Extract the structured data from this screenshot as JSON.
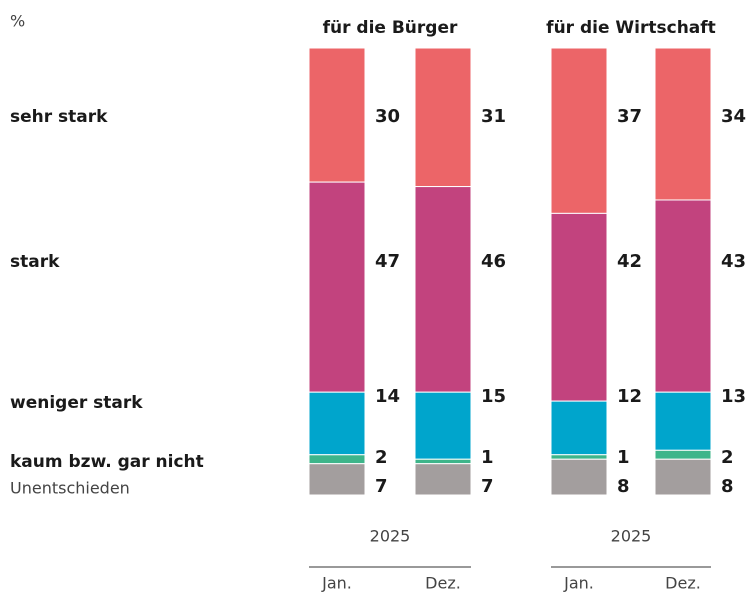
{
  "chart_data": {
    "type": "stacked-bar",
    "unit": "%",
    "ylim": [
      0,
      100
    ],
    "groups": [
      {
        "title": "für die Bürger",
        "year": "2025",
        "columns": [
          "Jan.",
          "Dez."
        ]
      },
      {
        "title": "für die Wirtschaft",
        "year": "2025",
        "columns": [
          "Jan.",
          "Dez."
        ]
      }
    ],
    "series": [
      {
        "name": "sehr stark",
        "color": "#ec6568",
        "values": [
          30,
          31,
          37,
          34
        ]
      },
      {
        "name": "stark",
        "color": "#c2437e",
        "values": [
          47,
          46,
          42,
          43
        ]
      },
      {
        "name": "weniger stark",
        "color": "#00a5cc",
        "values": [
          14,
          15,
          12,
          13
        ]
      },
      {
        "name": "kaum bzw. gar nicht",
        "color": "#3db58a",
        "values": [
          2,
          1,
          1,
          2
        ]
      },
      {
        "name": "Unentschieden",
        "color": "#a39e9e",
        "values": [
          7,
          7,
          8,
          8
        ]
      }
    ]
  }
}
